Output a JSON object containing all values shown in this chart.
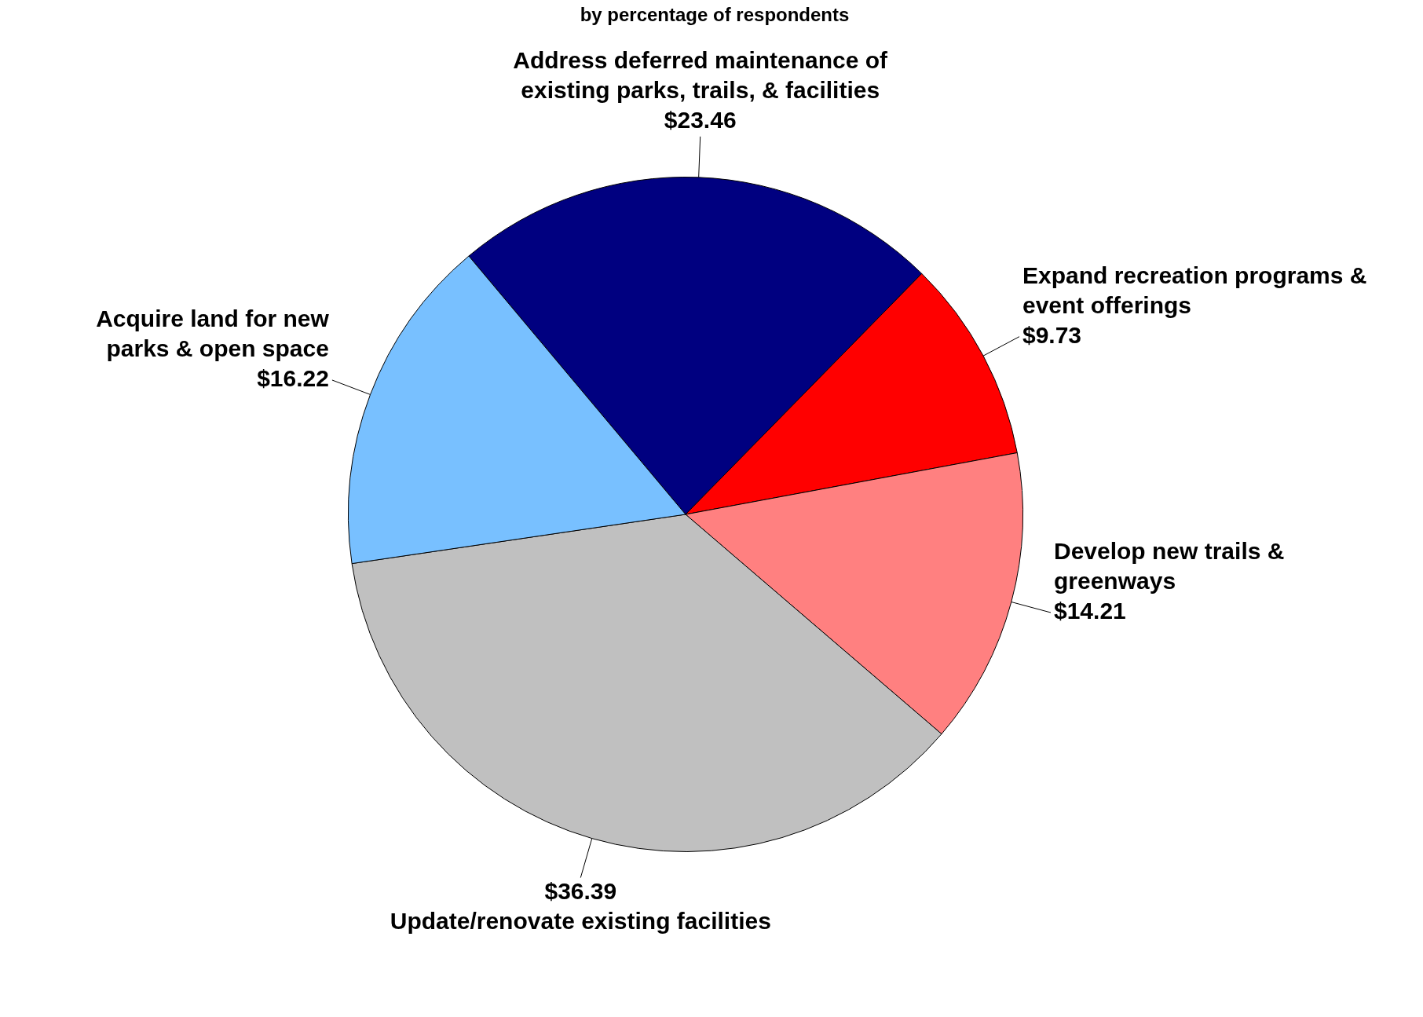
{
  "chart_data": {
    "type": "pie",
    "subtitle": "by percentage of respondents",
    "categories": [
      "Address deferred maintenance of existing parks, trails, & facilities",
      "Expand recreation programs & event offerings",
      "Develop new trails & greenways",
      "Update/renovate existing facilities",
      "Acquire land for new parks & open space"
    ],
    "values": [
      23.46,
      9.73,
      14.21,
      36.39,
      16.22
    ],
    "colors": [
      "#000080",
      "#ff0000",
      "#ff8080",
      "#c0c0c0",
      "#78c0ff"
    ],
    "value_labels": [
      "$23.46",
      "$9.73",
      "$14.21",
      "$36.39",
      "$16.22"
    ]
  }
}
